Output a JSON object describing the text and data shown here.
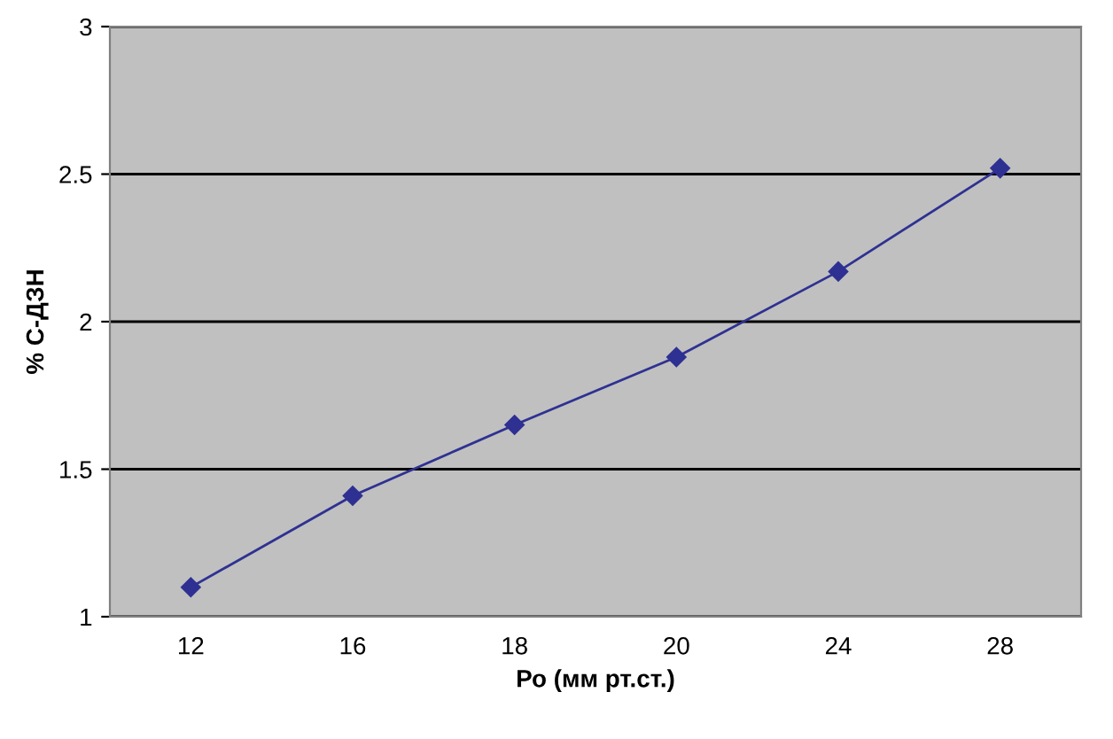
{
  "chart_data": {
    "type": "line",
    "xlabel": "Ро (мм рт.ст.)",
    "ylabel": "% С-ДЗН",
    "categories": [
      "12",
      "16",
      "18",
      "20",
      "24",
      "28"
    ],
    "series": [
      {
        "color": "#2e3192",
        "values": [
          1.1,
          1.41,
          1.65,
          1.88,
          2.17,
          2.52
        ]
      }
    ],
    "ylim": [
      1,
      3
    ],
    "yticks": [
      1,
      1.5,
      2,
      2.5,
      3
    ],
    "grid": "y",
    "marker": "diamond",
    "line_style": "solid",
    "legend": false
  }
}
